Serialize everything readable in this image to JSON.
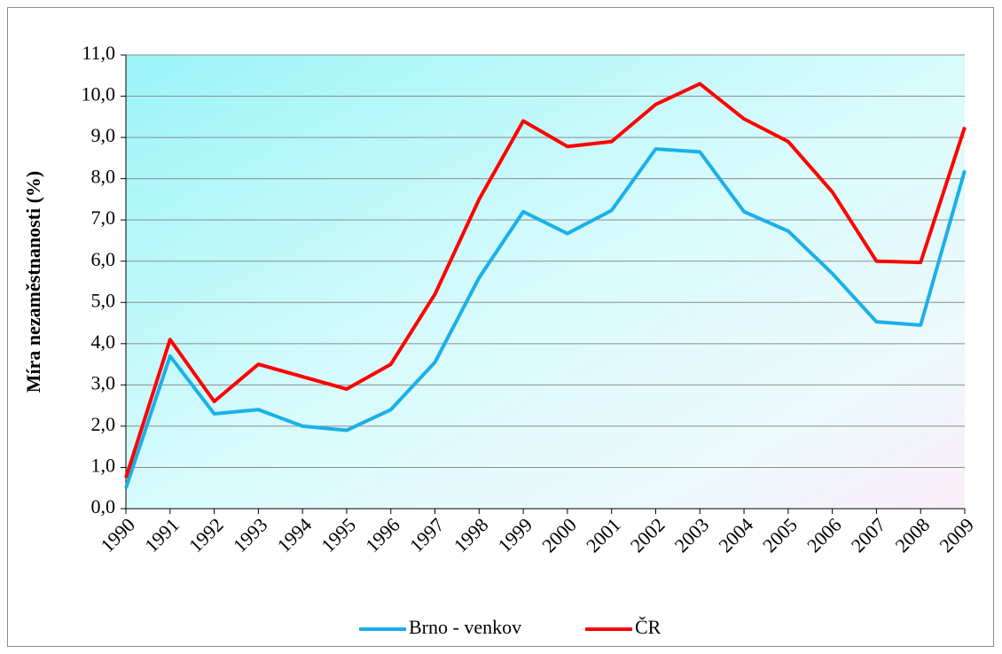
{
  "chart_data": {
    "type": "line",
    "y_label": "Míra nezaměstnanosti  (%)",
    "categories": [
      "1990",
      "1991",
      "1992",
      "1993",
      "1994",
      "1995",
      "1996",
      "1997",
      "1998",
      "1999",
      "2000",
      "2001",
      "2002",
      "2003",
      "2004",
      "2005",
      "2006",
      "2007",
      "2008",
      "2009"
    ],
    "series": [
      {
        "name": "Brno - venkov",
        "color": "#1ab0e8",
        "values": [
          0.5,
          3.7,
          2.3,
          2.4,
          2.0,
          1.9,
          2.4,
          3.55,
          5.6,
          7.2,
          6.67,
          7.23,
          8.72,
          8.65,
          7.2,
          6.73,
          5.7,
          4.53,
          4.45,
          8.2
        ]
      },
      {
        "name": "ČR",
        "color": "#ff0000",
        "values": [
          0.75,
          4.1,
          2.6,
          3.5,
          3.2,
          2.9,
          3.5,
          5.2,
          7.5,
          9.4,
          8.78,
          8.9,
          9.8,
          10.3,
          9.45,
          8.9,
          7.68,
          6.0,
          5.97,
          9.25
        ]
      }
    ],
    "ylim": [
      0,
      11
    ],
    "yticks": [
      {
        "value": 0,
        "label": "0,0"
      },
      {
        "value": 1,
        "label": "1,0"
      },
      {
        "value": 2,
        "label": "2,0"
      },
      {
        "value": 3,
        "label": "3,0"
      },
      {
        "value": 4,
        "label": "4,0"
      },
      {
        "value": 5,
        "label": "5,0"
      },
      {
        "value": 6,
        "label": "6,0"
      },
      {
        "value": 7,
        "label": "7,0"
      },
      {
        "value": 8,
        "label": "8,0"
      },
      {
        "value": 9,
        "label": "9,0"
      },
      {
        "value": 10,
        "label": "10,0"
      },
      {
        "value": 11,
        "label": "11,0"
      }
    ],
    "grid": true,
    "legend": "bottom"
  }
}
